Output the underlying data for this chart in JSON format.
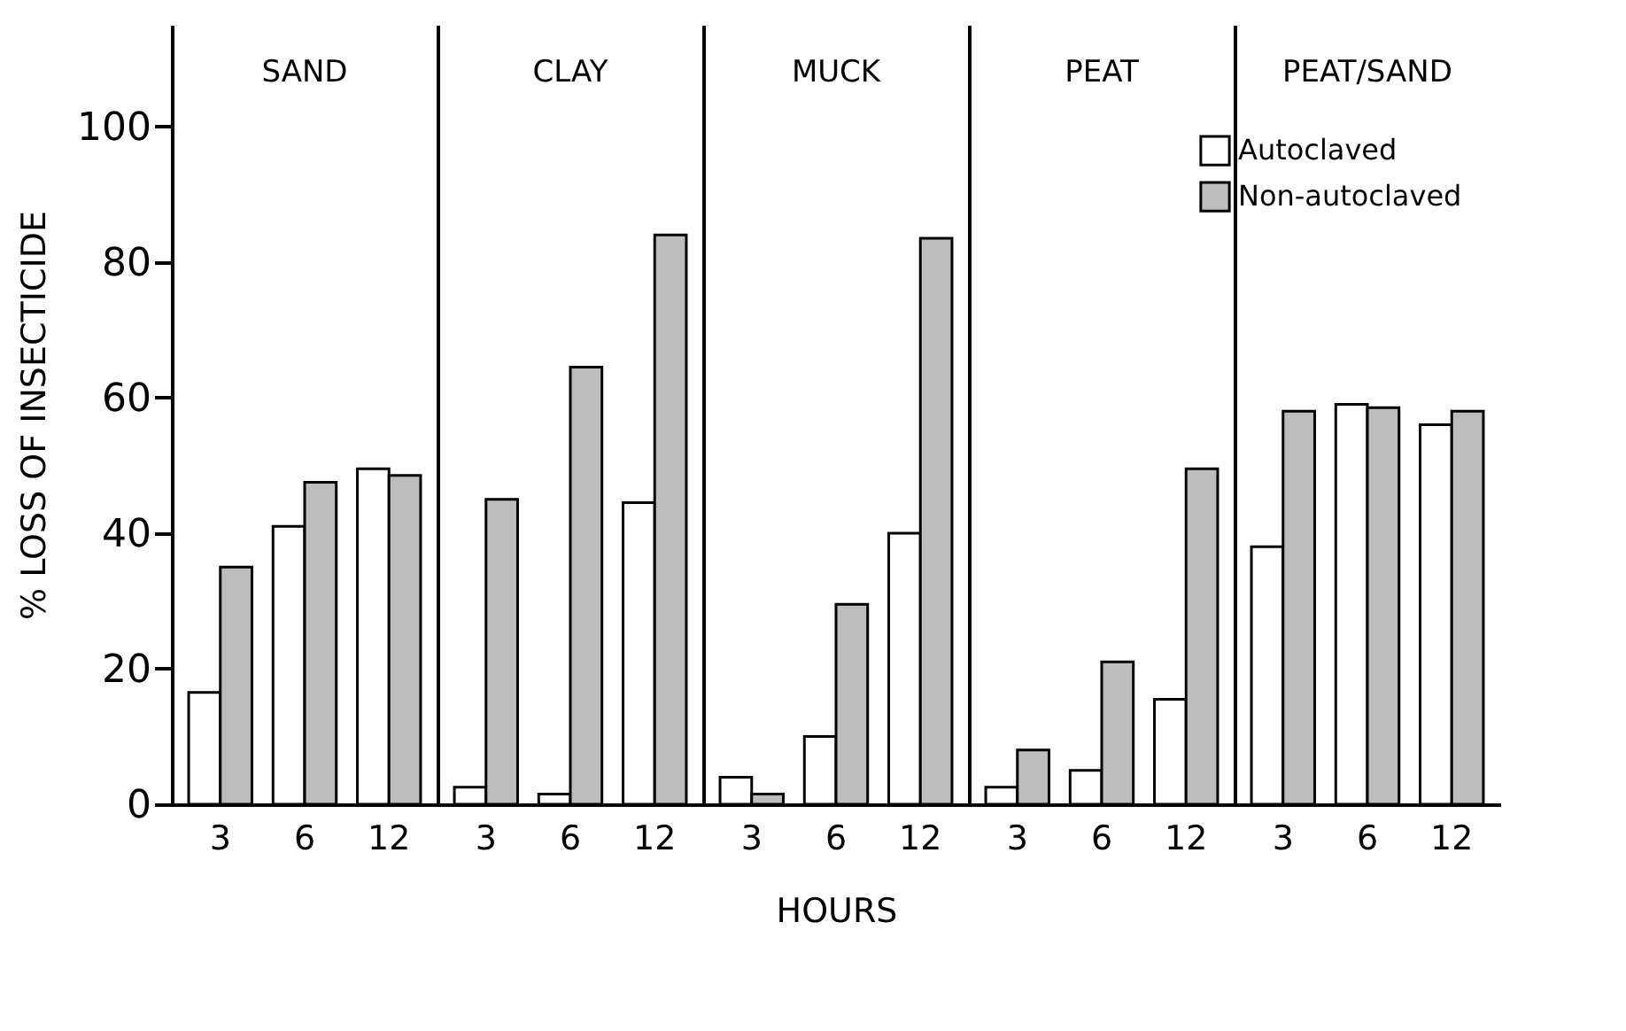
{
  "chart_data": [
    {
      "type": "bar",
      "title": "SAND",
      "ylabel": "% LOSS OF INSECTICIDE",
      "categories": [
        "3",
        "6",
        "12"
      ],
      "series": [
        {
          "name": "Autoclaved",
          "color": "#ffffff",
          "values": [
            16.5,
            41,
            49.5
          ]
        },
        {
          "name": "Non-autoclaved",
          "color": "#bdbdbd",
          "values": [
            35,
            47.5,
            48.5
          ]
        }
      ],
      "ylim": [
        0,
        115
      ],
      "yticks": [
        0,
        20,
        40,
        60,
        80,
        100
      ],
      "grid": false,
      "legend": "top right"
    },
    {
      "type": "bar",
      "title": "CLAY",
      "categories": [
        "3",
        "6",
        "12"
      ],
      "series": [
        {
          "name": "Autoclaved",
          "color": "#ffffff",
          "values": [
            2.5,
            1.5,
            44.5
          ]
        },
        {
          "name": "Non-autoclaved",
          "color": "#bdbdbd",
          "values": [
            45,
            64.5,
            84
          ]
        }
      ],
      "ylim": [
        0,
        115
      ],
      "yticks": [
        0,
        20,
        40,
        60,
        80,
        100
      ],
      "tick_labels": "x",
      "grid": false
    },
    {
      "type": "bar",
      "title": "MUCK",
      "xlabel": "HOURS",
      "categories": [
        "3",
        "6",
        "12"
      ],
      "series": [
        {
          "name": "Autoclaved",
          "color": "#ffffff",
          "values": [
            4,
            10,
            40
          ]
        },
        {
          "name": "Non-autoclaved",
          "color": "#bdbdbd",
          "values": [
            1.5,
            29.5,
            83.5
          ]
        }
      ],
      "ylim": [
        0,
        115
      ],
      "yticks": [
        0,
        20,
        40,
        60,
        80,
        100
      ],
      "tick_labels": "x",
      "grid": false
    },
    {
      "type": "bar",
      "title": "PEAT",
      "categories": [
        "3",
        "6",
        "12"
      ],
      "series": [
        {
          "name": "Autoclaved",
          "color": "#ffffff",
          "values": [
            2.5,
            5,
            15.5
          ]
        },
        {
          "name": "Non-autoclaved",
          "color": "#bdbdbd",
          "values": [
            8,
            21,
            49.5
          ]
        }
      ],
      "ylim": [
        0,
        115
      ],
      "yticks": [
        0,
        20,
        40,
        60,
        80,
        100
      ],
      "tick_labels": "x",
      "grid": false
    },
    {
      "type": "bar",
      "title": "PEAT/SAND",
      "categories": [
        "3",
        "6",
        "12"
      ],
      "series": [
        {
          "name": "Autoclaved",
          "color": "#ffffff",
          "values": [
            38,
            59,
            56
          ]
        },
        {
          "name": "Non-autoclaved",
          "color": "#bdbdbd",
          "values": [
            58,
            58.5,
            58
          ]
        }
      ],
      "ylim": [
        0,
        115
      ],
      "yticks": [
        0,
        20,
        40,
        60,
        80,
        100
      ],
      "tick_labels": "x",
      "grid": false
    }
  ]
}
